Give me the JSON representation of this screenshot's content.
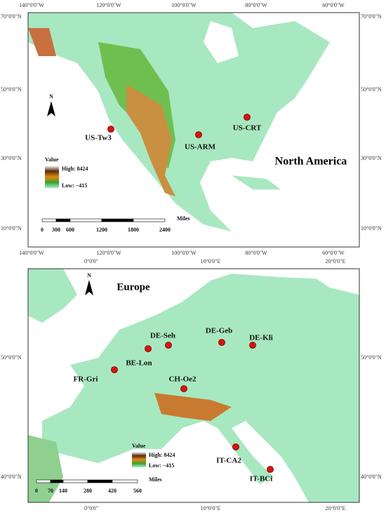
{
  "maps": [
    {
      "region": "North America",
      "lon_labels": [
        "140°0'0\"W",
        "120°0'0\"W",
        "100°0'0\"W",
        "80°0'0\"W",
        "60°0'0\"W"
      ],
      "lat_labels": [
        "70°0'0\"N",
        "50°0'0\"N",
        "30°0'0\"N",
        "10°0'0\"N"
      ],
      "sites": [
        "US-Tw3",
        "US-ARM",
        "US-CRT"
      ],
      "legend": {
        "title": "Value",
        "high": "High: 8424",
        "low": "Low: −415"
      },
      "scale": {
        "ticks": [
          "0",
          "300",
          "600",
          "1200",
          "1800",
          "2400"
        ],
        "unit": "Miles"
      },
      "north": "N"
    },
    {
      "region": "Europe",
      "lon_labels": [
        "0°0'0\"",
        "10°0'0\"E",
        "20°0'0\"E"
      ],
      "lat_labels": [
        "50°0'0\"N",
        "40°0'0\"N"
      ],
      "sites": [
        "DE-Seh",
        "DE-Geb",
        "DE-Kli",
        "BE-Lon",
        "FR-Gri",
        "CH-Oe2",
        "IT-CA2",
        "IT-BCi"
      ],
      "legend": {
        "title": "Value",
        "high": "High: 8424",
        "low": "Low: −415"
      },
      "scale": {
        "ticks": [
          "0",
          "70",
          "140",
          "280",
          "420",
          "560"
        ],
        "unit": "Miles"
      },
      "north": "N"
    }
  ]
}
